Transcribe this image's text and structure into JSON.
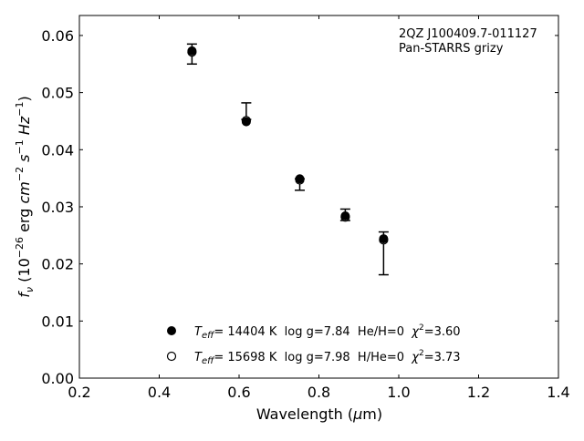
{
  "chart_data": {
    "type": "scatter",
    "title": "",
    "annotation_lines": [
      "2QZ J100409.7-011127",
      "Pan-STARRS grizy"
    ],
    "xlabel": {
      "main": "Wavelength (",
      "sym": "μ",
      "rest": "m)"
    },
    "ylabel": {
      "f": "f",
      "nu": "ν",
      "pre": "(10",
      "exp1": "−26",
      "erg": "erg",
      "cm": "cm",
      "exp2": "−2",
      "s": "s",
      "exp3": "−1",
      "hz": "Hz",
      "exp4": "−1",
      "close": ")"
    },
    "xlim": [
      0.2,
      1.4
    ],
    "ylim": [
      0.0,
      0.0635
    ],
    "xticks": [
      0.2,
      0.4,
      0.6,
      0.8,
      1.0,
      1.2,
      1.4
    ],
    "xtick_labels": [
      "0.2",
      "0.4",
      "0.6",
      "0.8",
      "1.0",
      "1.2",
      "1.4"
    ],
    "yticks": [
      0.0,
      0.01,
      0.02,
      0.03,
      0.04,
      0.05,
      0.06
    ],
    "ytick_labels": [
      "0.00",
      "0.01",
      "0.02",
      "0.03",
      "0.04",
      "0.05",
      "0.06"
    ],
    "grid": false,
    "legend_position": "lower-center",
    "series": [
      {
        "marker": "filled-circle",
        "legend": {
          "T": "T",
          "eff": "eff",
          "rest": "= 14404 K  log g=7.84  He/H=0  ",
          "chi": "χ",
          "sq": "2",
          "tail": "=3.60"
        },
        "x": [
          0.482,
          0.618,
          0.752,
          0.866,
          0.962
        ],
        "y": [
          0.0573,
          0.0449,
          0.0349,
          0.0284,
          0.0244
        ]
      },
      {
        "marker": "open-circle",
        "legend": {
          "T": "T",
          "eff": "eff",
          "rest": "= 15698 K  log g=7.98  H/He=0  ",
          "chi": "χ",
          "sq": "2",
          "tail": "=3.73"
        },
        "x": [
          0.482,
          0.618,
          0.752,
          0.866,
          0.962
        ],
        "y": [
          0.0571,
          0.0451,
          0.0347,
          0.0282,
          0.0242
        ]
      }
    ],
    "observed": {
      "x": [
        0.482,
        0.618,
        0.752,
        0.866,
        0.962
      ],
      "y": [
        0.0578,
        0.0455,
        0.0349,
        0.0286,
        0.0256
      ],
      "yerr_low": [
        0.0028,
        0.0002,
        0.002,
        0.001,
        0.0075
      ],
      "yerr_high": [
        0.0007,
        0.0027,
        0.0,
        0.001,
        0.0
      ]
    }
  }
}
